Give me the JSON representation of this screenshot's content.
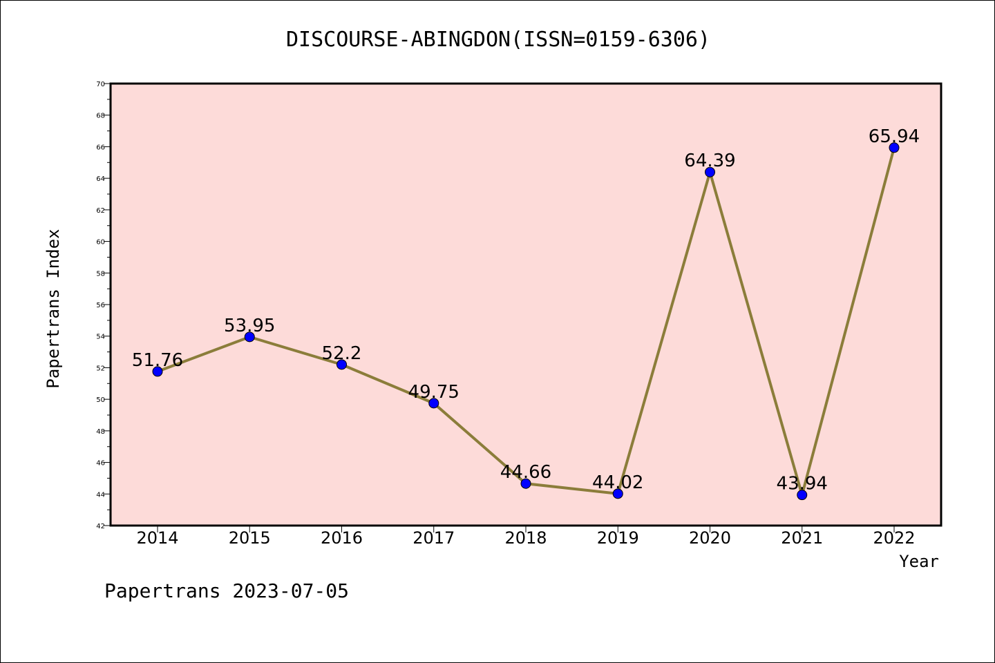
{
  "chart_data": {
    "type": "line",
    "title": "DISCOURSE-ABINGDON(ISSN=0159-6306)",
    "xlabel": "Year",
    "ylabel": "Papertrans Index",
    "categories": [
      "2014",
      "2015",
      "2016",
      "2017",
      "2018",
      "2019",
      "2020",
      "2021",
      "2022"
    ],
    "values": [
      51.76,
      53.95,
      52.2,
      49.75,
      44.66,
      44.02,
      64.39,
      43.94,
      65.94
    ],
    "data_labels": [
      "51.76",
      "53.95",
      "52.2",
      "49.75",
      "44.66",
      "44.02",
      "64.39",
      "43.94",
      "65.94"
    ],
    "ylim": [
      42,
      70
    ],
    "yticks": [
      "42",
      "44",
      "46",
      "48",
      "50",
      "52",
      "54",
      "56",
      "58",
      "60",
      "62",
      "64",
      "66",
      "68",
      "70"
    ],
    "grid": false,
    "legend": "none",
    "colors": {
      "plot_background": "#fddbd9",
      "line": "#8b7d3a",
      "marker": "#0000ff"
    }
  },
  "footer": "Papertrans 2023-07-05"
}
